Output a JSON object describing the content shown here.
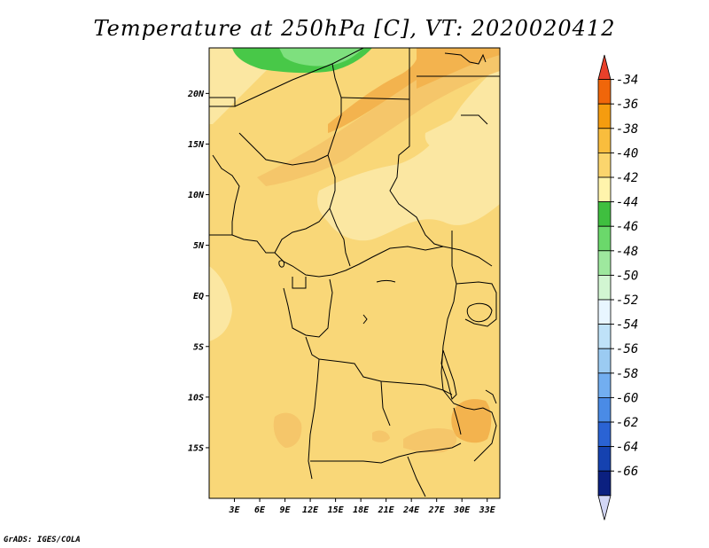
{
  "title": "Temperature at 250hPa [C], VT: 2020020412",
  "credit": "GrADS: IGES/COLA",
  "map": {
    "lat_ticks": [
      {
        "value": 20,
        "label": "20N"
      },
      {
        "value": 15,
        "label": "15N"
      },
      {
        "value": 10,
        "label": "10N"
      },
      {
        "value": 5,
        "label": "5N"
      },
      {
        "value": 0,
        "label": "EQ"
      },
      {
        "value": -5,
        "label": "5S"
      },
      {
        "value": -10,
        "label": "10S"
      },
      {
        "value": -15,
        "label": "15S"
      }
    ],
    "lon_ticks": [
      {
        "value": 3,
        "label": "3E"
      },
      {
        "value": 6,
        "label": "6E"
      },
      {
        "value": 9,
        "label": "9E"
      },
      {
        "value": 12,
        "label": "12E"
      },
      {
        "value": 15,
        "label": "15E"
      },
      {
        "value": 18,
        "label": "18E"
      },
      {
        "value": 21,
        "label": "21E"
      },
      {
        "value": 24,
        "label": "24E"
      },
      {
        "value": 27,
        "label": "27E"
      },
      {
        "value": 30,
        "label": "30E"
      },
      {
        "value": 33,
        "label": "33E"
      }
    ],
    "lon_range": [
      0,
      34.5
    ],
    "lat_range": [
      -20,
      24.5
    ]
  },
  "colorbar": {
    "levels": [
      "-34",
      "-36",
      "-38",
      "-40",
      "-42",
      "-44",
      "-46",
      "-48",
      "-50",
      "-52",
      "-54",
      "-56",
      "-58",
      "-60",
      "-62",
      "-64",
      "-66"
    ],
    "colors": [
      "#e8402a",
      "#f0660a",
      "#f59c0f",
      "#f9bd3d",
      "#fbd56d",
      "#fff4ac",
      "#3fbf3f",
      "#6bd86b",
      "#9ee89e",
      "#d2f6d2",
      "#e8f6ff",
      "#bfe2f8",
      "#9bcbf2",
      "#72aef0",
      "#4a8be6",
      "#2a63d4",
      "#1542b0",
      "#0b2080",
      "#d2d6f5"
    ]
  },
  "fill_colors": {
    "base": "#f9d778",
    "light": "#fbe7a2",
    "mid": "#f5c66a",
    "warm": "#f3b34e",
    "green": "#48c848",
    "lightgreen": "#7ee07e"
  }
}
